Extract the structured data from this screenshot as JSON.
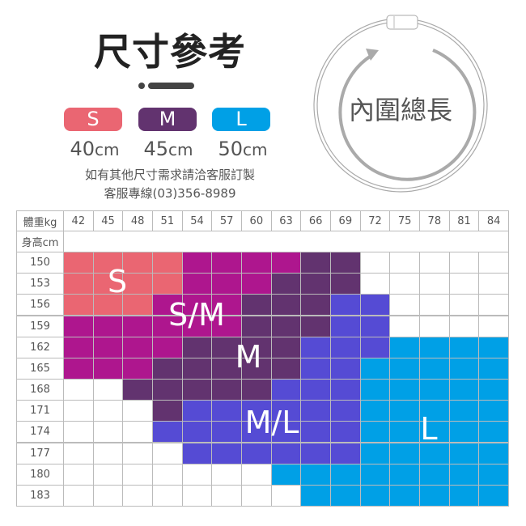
{
  "title": "尺寸參考",
  "sizes": [
    {
      "label": "S",
      "length": "40",
      "unit": "cm",
      "color": "#ea6672"
    },
    {
      "label": "M",
      "length": "45",
      "unit": "cm",
      "color": "#62336f"
    },
    {
      "label": "L",
      "length": "50",
      "unit": "cm",
      "color": "#00a0e6"
    }
  ],
  "note1": "如有其他尺寸需求請洽客服訂製",
  "note2": "客服專線(03)356-8989",
  "diagram_label": "內圍總長",
  "table": {
    "weight_header": "體重kg",
    "height_header": "身高cm",
    "weights": [
      "42",
      "45",
      "48",
      "51",
      "54",
      "57",
      "60",
      "63",
      "66",
      "69",
      "72",
      "75",
      "78",
      "81",
      "84"
    ],
    "heights": [
      "150",
      "153",
      "156",
      "159",
      "162",
      "165",
      "168",
      "171",
      "174",
      "177",
      "180",
      "183"
    ],
    "zone_colors": {
      "S": "#ea6672",
      "P": "#ae168e",
      "M": "#62336f",
      "B": "#554bd4",
      "L": "#00a0e6",
      "W": "#ffffff"
    },
    "zone_labels": {
      "S": "S",
      "P": "S/M",
      "M": "M",
      "B": "M/L",
      "L": "L"
    },
    "rows": [
      "SSSSPPPPMMWWWWW",
      "SSSSPPPMMMWWWWW",
      "SSSPPPMMMBBWWWW",
      "PPPPPPMMMBBWWWW",
      "PPPPMMMMBBBLLLL",
      "PPPMMMMMBBLLLLL",
      "WWMMMMMBBBLLLLL",
      "WWWMBBBBBBLLLLL",
      "WWWBBBBBBBLLLLL",
      "WWWWBBBBBBLLLLL",
      "WWWWWWWLLLLLLLL",
      "WWWWWWWWLLLLLLL"
    ]
  }
}
